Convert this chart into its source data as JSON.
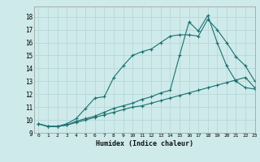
{
  "title": "",
  "xlabel": "Humidex (Indice chaleur)",
  "xlim": [
    -0.5,
    23
  ],
  "ylim": [
    9.0,
    18.8
  ],
  "yticks": [
    9,
    10,
    11,
    12,
    13,
    14,
    15,
    16,
    17,
    18
  ],
  "xticks": [
    0,
    1,
    2,
    3,
    4,
    5,
    6,
    7,
    8,
    9,
    10,
    11,
    12,
    13,
    14,
    15,
    16,
    17,
    18,
    19,
    20,
    21,
    22,
    23
  ],
  "bg_color": "#ceeaea",
  "line_color": "#1a7070",
  "grid_color": "#b8d8d8",
  "series": {
    "line1_x": [
      0,
      1,
      2,
      3,
      4,
      5,
      6,
      7,
      8,
      9,
      10,
      11,
      12,
      13,
      14,
      15,
      16,
      17,
      18,
      19,
      20,
      21,
      22,
      23
    ],
    "line1_y": [
      9.7,
      9.5,
      9.5,
      9.7,
      10.1,
      10.9,
      11.7,
      11.8,
      13.3,
      14.2,
      15.0,
      15.3,
      15.5,
      16.0,
      16.5,
      16.6,
      16.6,
      16.5,
      17.8,
      17.0,
      16.0,
      14.9,
      14.2,
      13.0
    ],
    "line2_x": [
      0,
      1,
      2,
      3,
      4,
      5,
      6,
      7,
      8,
      9,
      10,
      11,
      12,
      13,
      14,
      15,
      16,
      17,
      18,
      19,
      20,
      21,
      22,
      23
    ],
    "line2_y": [
      9.7,
      9.5,
      9.5,
      9.6,
      9.8,
      10.0,
      10.2,
      10.4,
      10.6,
      10.8,
      11.0,
      11.1,
      11.3,
      11.5,
      11.7,
      11.9,
      12.1,
      12.3,
      12.5,
      12.7,
      12.9,
      13.1,
      13.3,
      12.5
    ],
    "line3_x": [
      0,
      1,
      2,
      3,
      4,
      5,
      6,
      7,
      8,
      9,
      10,
      11,
      12,
      13,
      14,
      15,
      16,
      17,
      18,
      19,
      20,
      21,
      22,
      23
    ],
    "line3_y": [
      9.7,
      9.5,
      9.5,
      9.6,
      9.9,
      10.1,
      10.3,
      10.6,
      10.9,
      11.1,
      11.3,
      11.6,
      11.8,
      12.1,
      12.3,
      15.0,
      17.6,
      16.9,
      18.1,
      16.0,
      14.2,
      13.0,
      12.5,
      12.4
    ]
  }
}
